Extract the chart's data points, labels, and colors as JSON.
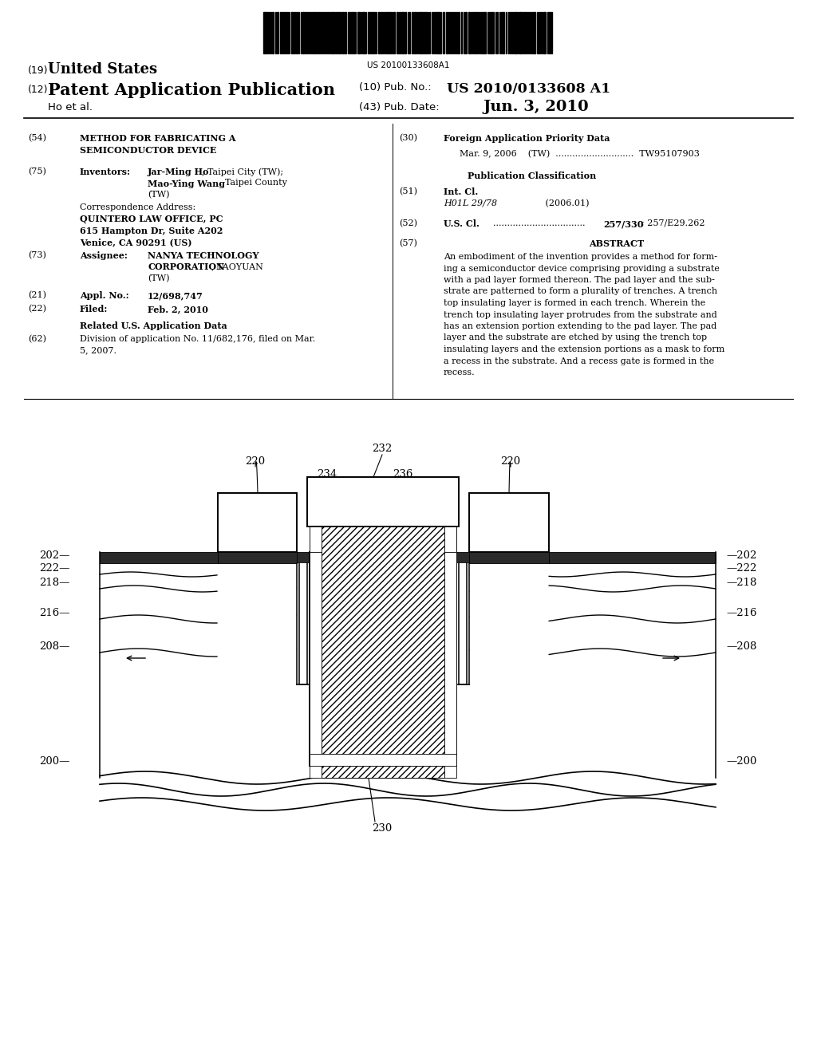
{
  "barcode_text": "US 20100133608A1",
  "title_19": "(19)",
  "title_19b": "United States",
  "title_12": "(12)",
  "title_12b": "Patent Application Publication",
  "author": "Ho et al.",
  "pub_no_label": "(10) Pub. No.:",
  "pub_no": "US 2010/0133608 A1",
  "pub_date_label": "(43) Pub. Date:",
  "pub_date": "Jun. 3, 2010",
  "bg_color": "#ffffff"
}
